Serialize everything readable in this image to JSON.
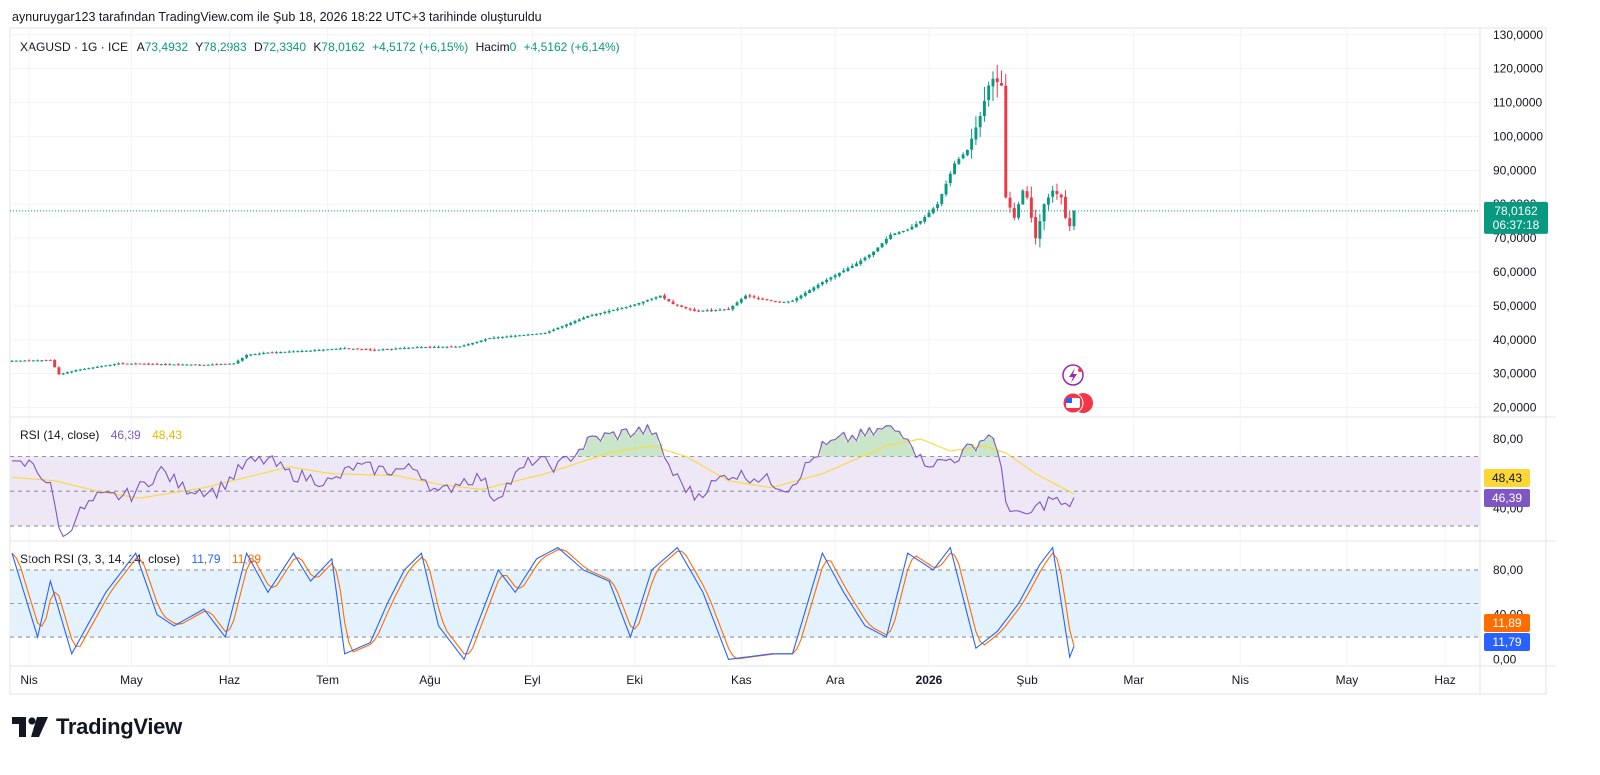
{
  "header": {
    "attribution": "aynuruygar123 tarafından TradingView.com ile Şub 18, 2026 18:22 UTC+3 tarihinde oluşturuldu"
  },
  "legend": {
    "symbol": "XAGUSD · 1G · ICE",
    "open_label": "A",
    "open": "73,4932",
    "high_label": "Y",
    "high": "78,2983",
    "low_label": "D",
    "low": "72,3340",
    "close_label": "K",
    "close": "78,0162",
    "change": "+4,5172 (+6,15%)",
    "volume_label": "Hacim",
    "volume": "0",
    "volume_change": "+4,5162 (+6,14%)"
  },
  "price_tag": {
    "price": "78,0162",
    "countdown": "06:37:18"
  },
  "rsi_legend": {
    "title": "RSI (14, close)",
    "rsi": "46,39",
    "ma": "48,43"
  },
  "stoch_legend": {
    "title": "Stoch RSI (3, 3, 14, 14, close)",
    "k": "11,79",
    "d": "11,89"
  },
  "colors": {
    "up": "#089981",
    "down": "#f23645",
    "rsi": "#7e57c2",
    "rsi_ma": "#fdd835",
    "stoch_k": "#2962ff",
    "stoch_d": "#ff6d00",
    "rsi_band": "#ede7f6",
    "stoch_band": "#e3f2fd"
  },
  "logo": {
    "text": "TradingView"
  },
  "chart_data": [
    {
      "type": "candlestick",
      "title": "XAGUSD · 1G · ICE",
      "y_ticks": [
        20,
        30,
        40,
        50,
        60,
        70,
        80,
        90,
        100,
        110,
        120,
        130
      ],
      "y_tick_labels": [
        "20,0000",
        "30,0000",
        "40,0000",
        "50,0000",
        "60,0000",
        "70,0000",
        "80,0000",
        "90,0000",
        "100,0000",
        "110,0000",
        "120,0000",
        "130,0000"
      ],
      "ylim": [
        17.5,
        132
      ],
      "x_labels": [
        "Nis",
        "May",
        "Haz",
        "Tem",
        "Ağu",
        "Eyl",
        "Eki",
        "Kas",
        "Ara",
        "2026",
        "Şub",
        "Mar",
        "Nis",
        "May",
        "Haz"
      ],
      "anchors_close": [
        [
          0,
          33.8
        ],
        [
          9,
          34.0
        ],
        [
          11,
          29.8
        ],
        [
          15,
          31.0
        ],
        [
          25,
          33.0
        ],
        [
          45,
          32.6
        ],
        [
          52,
          33.0
        ],
        [
          55,
          35.5
        ],
        [
          60,
          36.2
        ],
        [
          70,
          36.8
        ],
        [
          78,
          37.5
        ],
        [
          85,
          37.0
        ],
        [
          95,
          37.8
        ],
        [
          105,
          38.0
        ],
        [
          112,
          40.5
        ],
        [
          125,
          42.0
        ],
        [
          135,
          47.0
        ],
        [
          145,
          50.0
        ],
        [
          152,
          53.0
        ],
        [
          155,
          50.5
        ],
        [
          160,
          48.5
        ],
        [
          168,
          49.0
        ],
        [
          172,
          53.0
        ],
        [
          180,
          51.0
        ],
        [
          183,
          51.5
        ],
        [
          190,
          57.0
        ],
        [
          198,
          62.5
        ],
        [
          202,
          66.0
        ],
        [
          206,
          71.0
        ],
        [
          210,
          72.5
        ],
        [
          213,
          75.0
        ],
        [
          217,
          80.0
        ],
        [
          221,
          92.0
        ],
        [
          224,
          96.0
        ],
        [
          227,
          106.0
        ],
        [
          229,
          115.0
        ],
        [
          230,
          117.0
        ],
        [
          232,
          115.0
        ],
        [
          233,
          82.0
        ],
        [
          235,
          76.0
        ],
        [
          237,
          84.0
        ],
        [
          238,
          82.0
        ],
        [
          240,
          70.0
        ],
        [
          242,
          80.0
        ],
        [
          244,
          84.0
        ],
        [
          246,
          82.0
        ],
        [
          247,
          76.0
        ],
        [
          248,
          73.5
        ],
        [
          249,
          78.0162
        ]
      ],
      "last_candle": {
        "open": 73.4932,
        "high": 78.2983,
        "low": 72.334,
        "close": 78.0162
      }
    },
    {
      "type": "line",
      "title": "RSI (14, close)",
      "series": [
        {
          "name": "RSI"
        },
        {
          "name": "RSI-based MA"
        }
      ],
      "bands": [
        30,
        50,
        70
      ],
      "y_ticks": [
        40,
        80
      ],
      "y_tick_labels": [
        "40,00",
        "80,00"
      ],
      "ylim": [
        22,
        92
      ],
      "anchors_rsi": [
        [
          0,
          64
        ],
        [
          5,
          66
        ],
        [
          9,
          52
        ],
        [
          12,
          22
        ],
        [
          15,
          36
        ],
        [
          20,
          46
        ],
        [
          28,
          48
        ],
        [
          35,
          62
        ],
        [
          40,
          52
        ],
        [
          48,
          50
        ],
        [
          55,
          66
        ],
        [
          60,
          68
        ],
        [
          65,
          60
        ],
        [
          75,
          55
        ],
        [
          80,
          64
        ],
        [
          88,
          62
        ],
        [
          95,
          63
        ],
        [
          100,
          48
        ],
        [
          105,
          56
        ],
        [
          110,
          58
        ],
        [
          113,
          46
        ],
        [
          122,
          68
        ],
        [
          128,
          64
        ],
        [
          136,
          80
        ],
        [
          145,
          84
        ],
        [
          150,
          85
        ],
        [
          155,
          60
        ],
        [
          160,
          47
        ],
        [
          168,
          60
        ],
        [
          175,
          58
        ],
        [
          182,
          52
        ],
        [
          190,
          75
        ],
        [
          195,
          80
        ],
        [
          200,
          82
        ],
        [
          205,
          86
        ],
        [
          210,
          83
        ],
        [
          213,
          68
        ],
        [
          217,
          66
        ],
        [
          222,
          70
        ],
        [
          227,
          79
        ],
        [
          230,
          83
        ],
        [
          232,
          60
        ],
        [
          233,
          44
        ],
        [
          237,
          34
        ],
        [
          240,
          40
        ],
        [
          244,
          46
        ],
        [
          247,
          40
        ],
        [
          249,
          46.39
        ]
      ],
      "anchors_ma": [
        [
          0,
          58
        ],
        [
          10,
          56
        ],
        [
          20,
          50
        ],
        [
          30,
          46
        ],
        [
          45,
          52
        ],
        [
          55,
          58
        ],
        [
          65,
          64
        ],
        [
          75,
          60
        ],
        [
          90,
          59
        ],
        [
          100,
          54
        ],
        [
          110,
          51
        ],
        [
          125,
          60
        ],
        [
          140,
          72
        ],
        [
          150,
          76
        ],
        [
          158,
          70
        ],
        [
          168,
          56
        ],
        [
          178,
          52
        ],
        [
          190,
          60
        ],
        [
          205,
          76
        ],
        [
          213,
          80
        ],
        [
          220,
          73
        ],
        [
          228,
          76
        ],
        [
          233,
          72
        ],
        [
          240,
          60
        ],
        [
          249,
          48.43
        ]
      ]
    },
    {
      "type": "line",
      "title": "Stoch RSI (3, 3, 14, 14, close)",
      "series": [
        {
          "name": "%K"
        },
        {
          "name": "%D"
        }
      ],
      "bands": [
        20,
        50,
        80
      ],
      "y_ticks": [
        0,
        40,
        80
      ],
      "y_tick_labels": [
        "0,00",
        "40,00",
        "80,00"
      ],
      "ylim": [
        -5,
        105
      ],
      "anchors_k": [
        [
          0,
          95
        ],
        [
          6,
          20
        ],
        [
          9,
          70
        ],
        [
          14,
          5
        ],
        [
          22,
          60
        ],
        [
          29,
          95
        ],
        [
          34,
          40
        ],
        [
          38,
          30
        ],
        [
          45,
          45
        ],
        [
          50,
          20
        ],
        [
          55,
          95
        ],
        [
          60,
          60
        ],
        [
          66,
          95
        ],
        [
          70,
          70
        ],
        [
          75,
          90
        ],
        [
          78,
          5
        ],
        [
          84,
          15
        ],
        [
          88,
          50
        ],
        [
          92,
          80
        ],
        [
          96,
          95
        ],
        [
          100,
          30
        ],
        [
          106,
          0
        ],
        [
          110,
          40
        ],
        [
          114,
          80
        ],
        [
          118,
          60
        ],
        [
          123,
          90
        ],
        [
          128,
          100
        ],
        [
          134,
          80
        ],
        [
          140,
          70
        ],
        [
          145,
          20
        ],
        [
          150,
          80
        ],
        [
          156,
          100
        ],
        [
          162,
          60
        ],
        [
          168,
          0
        ],
        [
          178,
          5
        ],
        [
          183,
          5
        ],
        [
          190,
          95
        ],
        [
          195,
          60
        ],
        [
          200,
          30
        ],
        [
          205,
          20
        ],
        [
          210,
          95
        ],
        [
          216,
          80
        ],
        [
          220,
          100
        ],
        [
          226,
          10
        ],
        [
          231,
          25
        ],
        [
          236,
          50
        ],
        [
          241,
          85
        ],
        [
          244,
          100
        ],
        [
          248,
          2
        ],
        [
          252,
          5
        ],
        [
          258,
          10
        ],
        [
          262,
          8
        ],
        [
          266,
          12
        ],
        [
          270,
          5
        ],
        [
          275,
          8
        ],
        [
          249,
          11.79
        ]
      ],
      "anchors_d": []
    }
  ]
}
